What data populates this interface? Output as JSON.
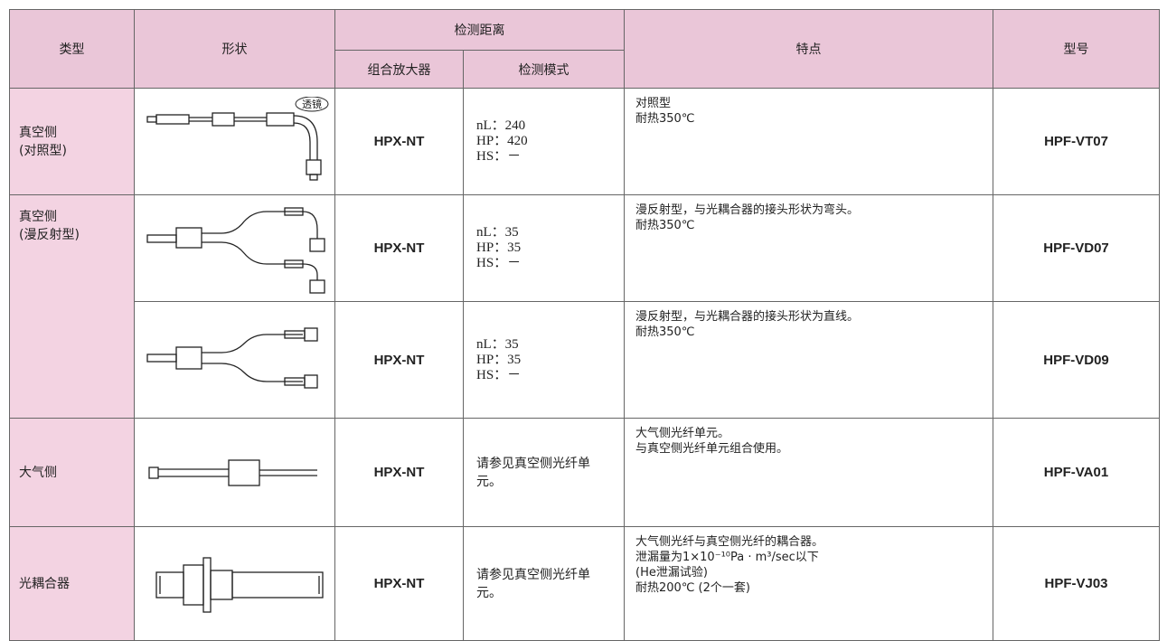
{
  "table": {
    "headers": {
      "type": "类型",
      "shape": "形状",
      "distance": "检测距离",
      "amplifier": "组合放大器",
      "mode": "检测模式",
      "features": "特点",
      "model": "型号"
    },
    "lens_label": "透镜",
    "rows": [
      {
        "type": [
          "真空侧",
          "(对照型)"
        ],
        "amplifier": "HPX-NT",
        "mode": [
          "nL：240",
          "HP：420",
          "HS：－"
        ],
        "features": [
          "对照型",
          "耐热350℃"
        ],
        "model": "HPF-VT07"
      },
      {
        "type": [
          "真空侧",
          "(漫反射型)"
        ],
        "amplifier": "HPX-NT",
        "mode": [
          "nL：35",
          "HP：35",
          "HS：－"
        ],
        "features": [
          "漫反射型，与光耦合器的接头形状为弯头。",
          "耐热350℃"
        ],
        "model": "HPF-VD07"
      },
      {
        "amplifier": "HPX-NT",
        "mode": [
          "nL：35",
          "HP：35",
          "HS：－"
        ],
        "features": [
          "漫反射型，与光耦合器的接头形状为直线。",
          "耐热350℃"
        ],
        "model": "HPF-VD09"
      },
      {
        "type": [
          "大气侧"
        ],
        "amplifier": "HPX-NT",
        "mode": [
          "请参见真空侧光纤单元。"
        ],
        "features": [
          "大气侧光纤单元。",
          "与真空侧光纤单元组合使用。"
        ],
        "model": "HPF-VA01"
      },
      {
        "type": [
          "光耦合器"
        ],
        "amplifier": "HPX-NT",
        "mode": [
          "请参见真空侧光纤单元。"
        ],
        "features": [
          "大气侧光纤与真空侧光纤的耦合器。",
          "泄漏量为1×10⁻¹⁰Pa · m³/sec以下",
          "(He泄漏试验)",
          "耐热200℃ (2个一套)"
        ],
        "model": "HPF-VJ03"
      }
    ]
  }
}
